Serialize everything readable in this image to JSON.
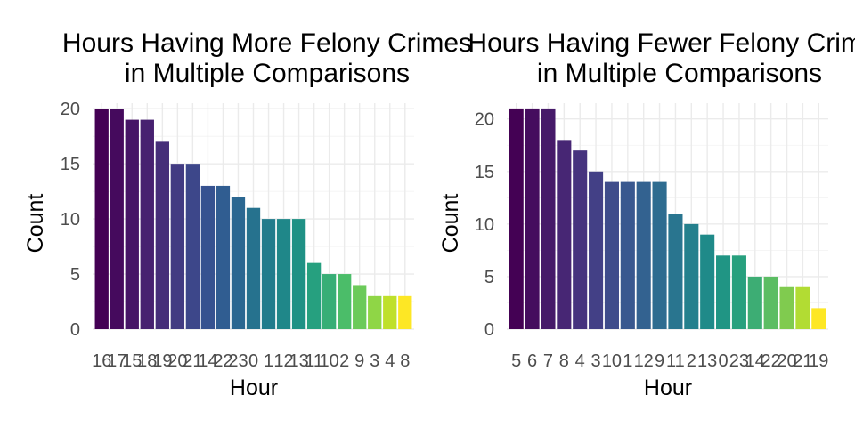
{
  "chart_data": [
    {
      "type": "bar",
      "title": "Hours Having More Felony Crimes\nin Multiple Comparisons",
      "xlabel": "Hour",
      "ylabel": "Count",
      "ylim": [
        0,
        20.5
      ],
      "yticks": [
        0,
        5,
        10,
        15,
        20
      ],
      "categories": [
        "16",
        "17",
        "15",
        "18",
        "19",
        "20",
        "21",
        "14",
        "22",
        "23",
        "0",
        "1",
        "12",
        "13",
        "11",
        "10",
        "2",
        "9",
        "3",
        "4",
        "8"
      ],
      "values": [
        20,
        20,
        19,
        19,
        17,
        15,
        15,
        13,
        13,
        12,
        11,
        10,
        10,
        10,
        6,
        5,
        5,
        4,
        3,
        3,
        3
      ],
      "colors": [
        "#440154",
        "#450a5d",
        "#461566",
        "#472170",
        "#462e79",
        "#423b82",
        "#3d478a",
        "#365290",
        "#305d91",
        "#2b6791",
        "#26728e",
        "#217c8c",
        "#1f8789",
        "#1f9185",
        "#26a07f",
        "#37ae76",
        "#4bbd69",
        "#6bca5a",
        "#8fd646",
        "#bfe02b",
        "#fde725"
      ],
      "grid": true,
      "legend": "none"
    },
    {
      "type": "bar",
      "title": "Hours Having Fewer Felony Crimes\nin Multiple Comparisons",
      "xlabel": "Hour",
      "ylabel": "Count",
      "ylim": [
        0,
        21.5
      ],
      "yticks": [
        0,
        5,
        10,
        15,
        20
      ],
      "categories": [
        "5",
        "6",
        "7",
        "8",
        "4",
        "3",
        "10",
        "1",
        "12",
        "9",
        "11",
        "2",
        "13",
        "0",
        "23",
        "14",
        "22",
        "20",
        "21",
        "19"
      ],
      "values": [
        21,
        21,
        21,
        18,
        17,
        15,
        14,
        14,
        14,
        14,
        11,
        10,
        9,
        7,
        7,
        5,
        5,
        4,
        4,
        2
      ],
      "colors": [
        "#440154",
        "#450d5e",
        "#461a69",
        "#472674",
        "#46337e",
        "#434086",
        "#3f4c8b",
        "#39588f",
        "#336290",
        "#2e6c90",
        "#29758f",
        "#24808d",
        "#1f8a89",
        "#209584",
        "#27a07e",
        "#3dad74",
        "#5bbd63",
        "#80cb4f",
        "#b2dc33",
        "#fde725"
      ],
      "grid": true,
      "legend": "none"
    }
  ]
}
